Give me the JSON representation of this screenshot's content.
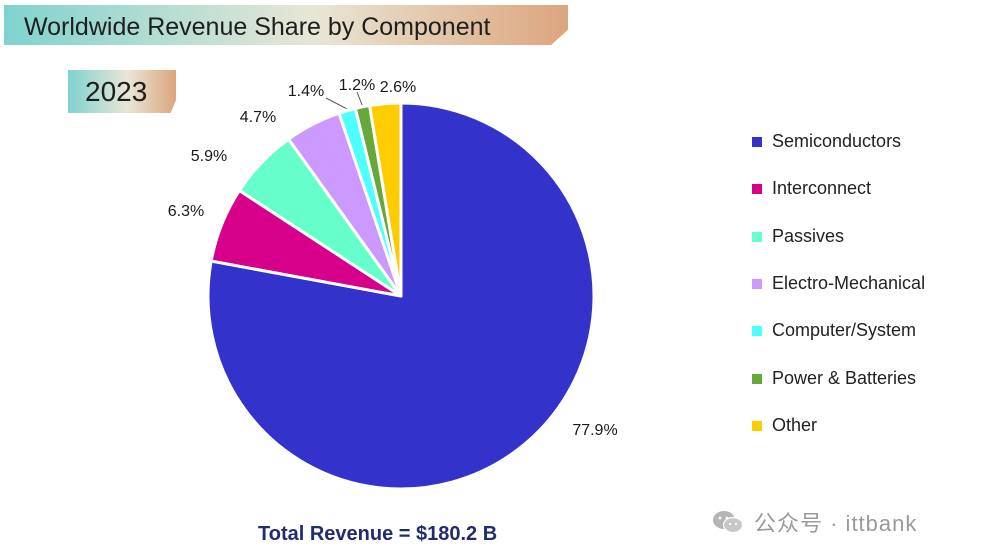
{
  "header": {
    "title": "Worldwide Revenue Share by Component",
    "year": "2023"
  },
  "chart_data": {
    "type": "pie",
    "title": "Worldwide Revenue Share by Component",
    "subtitle": "2023",
    "labels": [
      "Semiconductors",
      "Interconnect",
      "Passives",
      "Electro-Mechanical",
      "Computer/System",
      "Power & Batteries",
      "Other"
    ],
    "values": [
      77.9,
      6.3,
      5.9,
      4.7,
      1.4,
      1.2,
      2.6
    ],
    "value_labels": [
      "77.9%",
      "6.3%",
      "5.9%",
      "4.7%",
      "1.4%",
      "1.2%",
      "2.6%"
    ],
    "colors": [
      "#3333cc",
      "#d6008a",
      "#66ffcc",
      "#cc99ff",
      "#4dffff",
      "#66a83a",
      "#ffcc00"
    ],
    "start_angle": "12 o'clock, clockwise",
    "legend_position": "right"
  },
  "footer": {
    "total_revenue": "Total Revenue = $180.2 B"
  },
  "watermark": {
    "text": "公众号 · ittbank"
  }
}
